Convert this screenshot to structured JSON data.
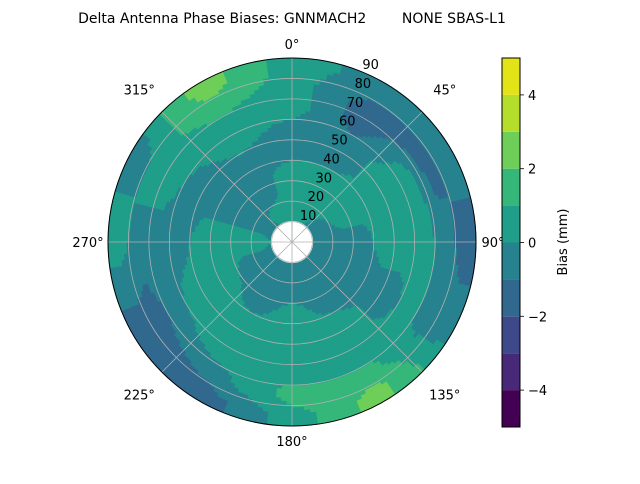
{
  "chart_data": {
    "type": "heatmap",
    "subtype": "polar-filled-contour",
    "title": "Delta Antenna Phase Biases: GNNMACH2        NONE SBAS-L1",
    "theta_direction": "clockwise",
    "theta_zero": "north",
    "theta_tick_labels": [
      "0°",
      "45°",
      "90°",
      "135°",
      "180°",
      "225°",
      "270°",
      "315°"
    ],
    "theta_ticks": [
      0,
      45,
      90,
      135,
      180,
      225,
      270,
      315
    ],
    "r_ticks": [
      10,
      20,
      30,
      40,
      50,
      60,
      70,
      80,
      90
    ],
    "r_tick_labels": [
      "10",
      "20",
      "30",
      "40",
      "50",
      "60",
      "70",
      "80",
      "90"
    ],
    "rlim": [
      0,
      90
    ],
    "grid": true,
    "grid_azimuths": [
      0,
      30,
      60,
      90,
      120,
      150,
      180,
      210,
      240,
      270,
      300,
      330
    ],
    "grid_r": [
      5,
      15,
      25,
      35,
      45,
      55,
      65,
      75,
      85
    ],
    "values": [
      [
        -0.5,
        0.5,
        0.5,
        0.5,
        -0.5,
        -0.5,
        0.5,
        0.5,
        0.5
      ],
      [
        -0.5,
        0.5,
        0.5,
        0.5,
        -0.5,
        -0.5,
        -1.5,
        -1.5,
        -0.5
      ],
      [
        -0.5,
        -0.5,
        0.5,
        0.5,
        0.5,
        0.5,
        0.5,
        -1.5,
        -0.5
      ],
      [
        -0.5,
        -0.5,
        -0.5,
        -0.5,
        0.5,
        0.5,
        0.5,
        -0.5,
        -1.5
      ],
      [
        -0.5,
        -0.5,
        -0.5,
        -0.5,
        -0.5,
        -0.5,
        0.5,
        -0.5,
        -0.5
      ],
      [
        -0.5,
        -0.5,
        -0.5,
        -0.5,
        0.5,
        0.5,
        0.5,
        1.5,
        2.5
      ],
      [
        -0.5,
        -0.5,
        -0.5,
        0.5,
        0.5,
        0.5,
        0.5,
        1.5,
        0.5
      ],
      [
        -0.5,
        -0.5,
        -0.5,
        -0.5,
        0.5,
        0.5,
        0.5,
        -0.5,
        -1.5
      ],
      [
        -0.5,
        -0.5,
        -0.5,
        0.5,
        0.5,
        0.5,
        -0.5,
        -1.5,
        -1.5
      ],
      [
        -0.5,
        0.5,
        0.5,
        0.5,
        0.5,
        -0.5,
        -0.5,
        -0.5,
        0.5
      ],
      [
        -0.5,
        -0.5,
        -0.5,
        -0.5,
        -0.5,
        -0.5,
        0.5,
        0.5,
        -0.5
      ],
      [
        -0.5,
        0.5,
        -0.5,
        -0.5,
        -0.5,
        0.5,
        0.5,
        1.5,
        2.5
      ]
    ],
    "colorbar": {
      "label": "Bias (mm)",
      "levels": [
        -5,
        -4,
        -3,
        -2,
        -1,
        0,
        1,
        2,
        3,
        4,
        5
      ],
      "colors": [
        "#440154",
        "#482878",
        "#3e4989",
        "#31688e",
        "#26828e",
        "#1f9e89",
        "#35b779",
        "#6ece58",
        "#b5de2b",
        "#e2e418"
      ],
      "ticks": [
        -4,
        -2,
        0,
        2,
        4
      ],
      "tick_labels": [
        "−4",
        "−2",
        "0",
        "2",
        "4"
      ],
      "colormap": "viridis"
    }
  }
}
